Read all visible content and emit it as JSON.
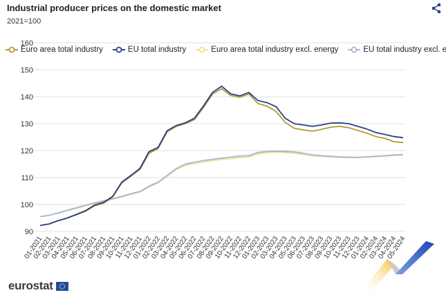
{
  "header": {
    "title": "Industrial producer prices on the domestic market",
    "subtitle": "2021=100",
    "share_icon": "share-icon"
  },
  "footer": {
    "logo_text": "eurostat",
    "flag_icon": "eu-flag-icon"
  },
  "colors": {
    "euro_area": "#b29a2a",
    "eu": "#2a3f8c",
    "euro_area_excl": "#f0e08a",
    "eu_excl": "#aab4d6",
    "grid": "#e2e2e2",
    "axis_text": "#333333"
  },
  "chart_data": {
    "type": "line",
    "title": "Industrial producer prices on the domestic market",
    "subtitle": "2021=100",
    "ylim": [
      90,
      160
    ],
    "yticks": [
      90,
      100,
      110,
      120,
      130,
      140,
      150,
      160
    ],
    "grid": true,
    "legend_position": "top-left",
    "categories": [
      "01-2021",
      "02-2021",
      "03-2021",
      "04-2021",
      "05-2021",
      "06-2021",
      "07-2021",
      "08-2021",
      "09-2021",
      "10-2021",
      "11-2021",
      "12-2021",
      "01-2022",
      "02-2022",
      "03-2022",
      "04-2022",
      "05-2022",
      "06-2022",
      "07-2022",
      "08-2022",
      "09-2022",
      "10-2022",
      "11-2022",
      "12-2022",
      "01-2023",
      "02-2023",
      "03-2023",
      "04-2023",
      "05-2023",
      "06-2023",
      "07-2023",
      "08-2023",
      "09-2023",
      "10-2023",
      "11-2023",
      "12-2023",
      "01-2024",
      "02-2024",
      "03-2024",
      "04-2024",
      "05-2024"
    ],
    "series": [
      {
        "name": "Euro area total industry",
        "color": "#b29a2a",
        "values": [
          92.2,
          92.8,
          94.0,
          95.0,
          96.2,
          97.5,
          99.5,
          100.5,
          102.8,
          108.0,
          110.5,
          113.0,
          119.0,
          120.8,
          127.0,
          129.0,
          130.0,
          131.5,
          136.0,
          141.0,
          143.0,
          140.5,
          139.8,
          141.0,
          137.5,
          136.5,
          134.5,
          130.5,
          128.3,
          127.7,
          127.2,
          127.9,
          128.7,
          129.0,
          128.5,
          127.5,
          126.5,
          125.2,
          124.5,
          123.3,
          123.0
        ]
      },
      {
        "name": "EU total industry",
        "color": "#2a3f8c",
        "values": [
          92.2,
          92.8,
          94.0,
          95.0,
          96.3,
          97.7,
          99.8,
          100.8,
          103.0,
          108.3,
          110.8,
          113.4,
          119.6,
          121.2,
          127.4,
          129.3,
          130.3,
          132.0,
          136.6,
          141.6,
          143.9,
          141.1,
          140.3,
          141.6,
          138.6,
          137.8,
          136.3,
          132.0,
          130.0,
          129.5,
          129.0,
          129.5,
          130.2,
          130.3,
          130.0,
          129.0,
          128.0,
          126.7,
          126.0,
          125.2,
          124.8
        ]
      },
      {
        "name": "Euro area total industry excl. energy",
        "color": "#f0e08a",
        "values": [
          95.5,
          96.0,
          96.8,
          97.7,
          98.6,
          99.5,
          100.4,
          101.2,
          102.0,
          102.8,
          103.8,
          104.6,
          106.5,
          108.0,
          110.5,
          113.0,
          114.5,
          115.2,
          115.8,
          116.3,
          116.7,
          117.0,
          117.4,
          117.6,
          118.8,
          119.2,
          119.4,
          119.3,
          119.0,
          118.6,
          118.1,
          117.8,
          117.7,
          117.5,
          117.4,
          117.4,
          117.6,
          117.8,
          118.0,
          118.2,
          118.3
        ]
      },
      {
        "name": "EU total industry excl. energy",
        "color": "#aab4d6",
        "values": [
          95.5,
          96.0,
          96.9,
          97.9,
          98.8,
          99.7,
          100.6,
          101.4,
          102.1,
          103.0,
          104.0,
          104.8,
          106.8,
          108.3,
          110.8,
          113.3,
          115.0,
          115.7,
          116.3,
          116.8,
          117.2,
          117.6,
          118.0,
          118.1,
          119.3,
          119.7,
          119.8,
          119.7,
          119.5,
          119.0,
          118.4,
          118.1,
          117.9,
          117.7,
          117.6,
          117.5,
          117.7,
          117.9,
          118.1,
          118.4,
          118.5
        ]
      }
    ]
  }
}
